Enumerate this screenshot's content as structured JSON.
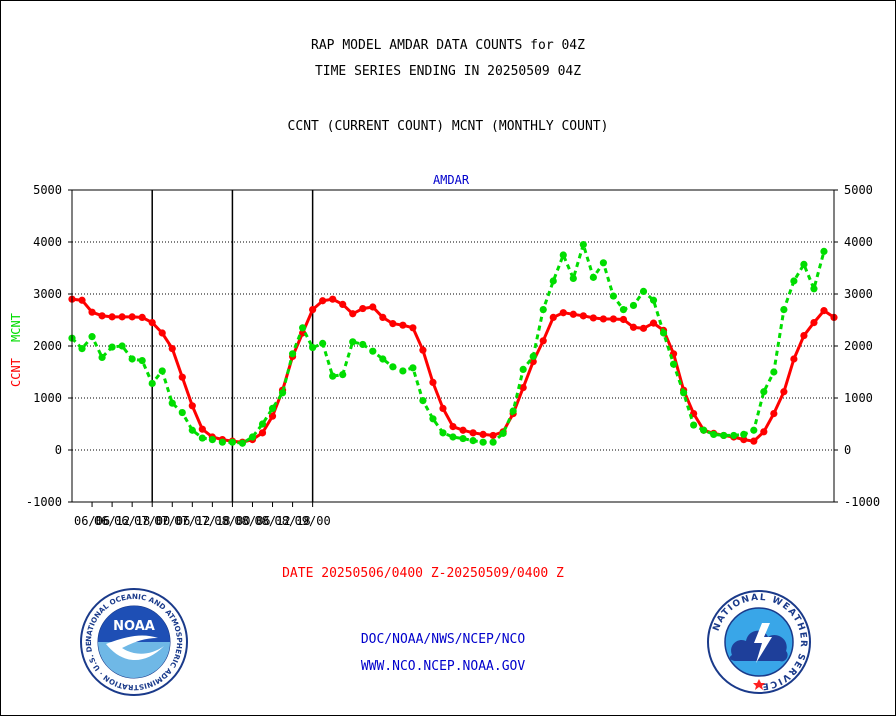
{
  "header": {
    "title_line1": "RAP MODEL AMDAR DATA COUNTS for 04Z",
    "title_line2": "TIME SERIES ENDING IN 20250509 04Z",
    "subtitle": "CCNT (CURRENT COUNT) MCNT (MONTHLY COUNT)"
  },
  "chart_data": {
    "type": "line",
    "title": "AMDAR",
    "ylabel_left_1": "CCNT",
    "ylabel_left_2": "MCNT",
    "ylim": [
      -1000,
      5000
    ],
    "yticks": [
      -1000,
      0,
      1000,
      2000,
      3000,
      4000,
      5000
    ],
    "xticks": [
      "06/06",
      "06/12",
      "06/18",
      "07/00",
      "07/06",
      "07/12",
      "07/18",
      "08/00",
      "08/06",
      "08/12",
      "08/18",
      "09/00"
    ],
    "day_dividers": [
      "07/00",
      "08/00",
      "09/00"
    ],
    "grid": true,
    "colors": {
      "ccnt": "#ff0000",
      "mcnt": "#00dd00",
      "title": "#0000cc"
    },
    "series": [
      {
        "name": "CCNT",
        "values": [
          2900,
          2880,
          2650,
          2580,
          2560,
          2560,
          2560,
          2550,
          2450,
          2250,
          1950,
          1400,
          850,
          400,
          250,
          200,
          170,
          150,
          200,
          330,
          650,
          1150,
          1800,
          2250,
          2700,
          2870,
          2900,
          2800,
          2620,
          2720,
          2750,
          2550,
          2430,
          2400,
          2350,
          1920,
          1300,
          800,
          450,
          380,
          330,
          300,
          280,
          350,
          700,
          1200,
          1700,
          2100,
          2550,
          2640,
          2610,
          2580,
          2540,
          2520,
          2520,
          2510,
          2360,
          2340,
          2440,
          2300,
          1850,
          1150,
          700,
          380,
          320,
          280,
          250,
          200,
          170,
          350,
          700,
          1120,
          1750,
          2200,
          2450,
          2680,
          2550
        ]
      },
      {
        "name": "MCNT",
        "values": [
          2150,
          1950,
          2180,
          1780,
          1980,
          2000,
          1750,
          1720,
          1280,
          1520,
          900,
          720,
          380,
          230,
          200,
          150,
          150,
          130,
          250,
          500,
          800,
          1100,
          1850,
          2350,
          1970,
          2050,
          1420,
          1450,
          2080,
          2030,
          1900,
          1750,
          1600,
          1520,
          1580,
          950,
          600,
          330,
          250,
          220,
          180,
          150,
          150,
          320,
          750,
          1550,
          1800,
          2700,
          3250,
          3750,
          3300,
          3950,
          3320,
          3600,
          2960,
          2700,
          2780,
          3050,
          2880,
          2250,
          1650,
          1100,
          480,
          380,
          300,
          280,
          280,
          300,
          380,
          1120,
          1500,
          2700,
          3250,
          3570,
          3100,
          3820
        ]
      }
    ]
  },
  "footer": {
    "date_range": "DATE 20250506/0400 Z-20250509/0400 Z",
    "credit_line1": "DOC/NOAA/NWS/NCEP/NCO",
    "credit_line2": "WWW.NCO.NCEP.NOAA.GOV"
  },
  "logos": {
    "noaa_text": "NOAA",
    "noaa_ring": "NATIONAL OCEANIC AND ATMOSPHERIC ADMINISTRATION · U.S. DEPARTMENT OF COMMERCE ·",
    "nws_ring": "NATIONAL WEATHER SERVICE"
  }
}
